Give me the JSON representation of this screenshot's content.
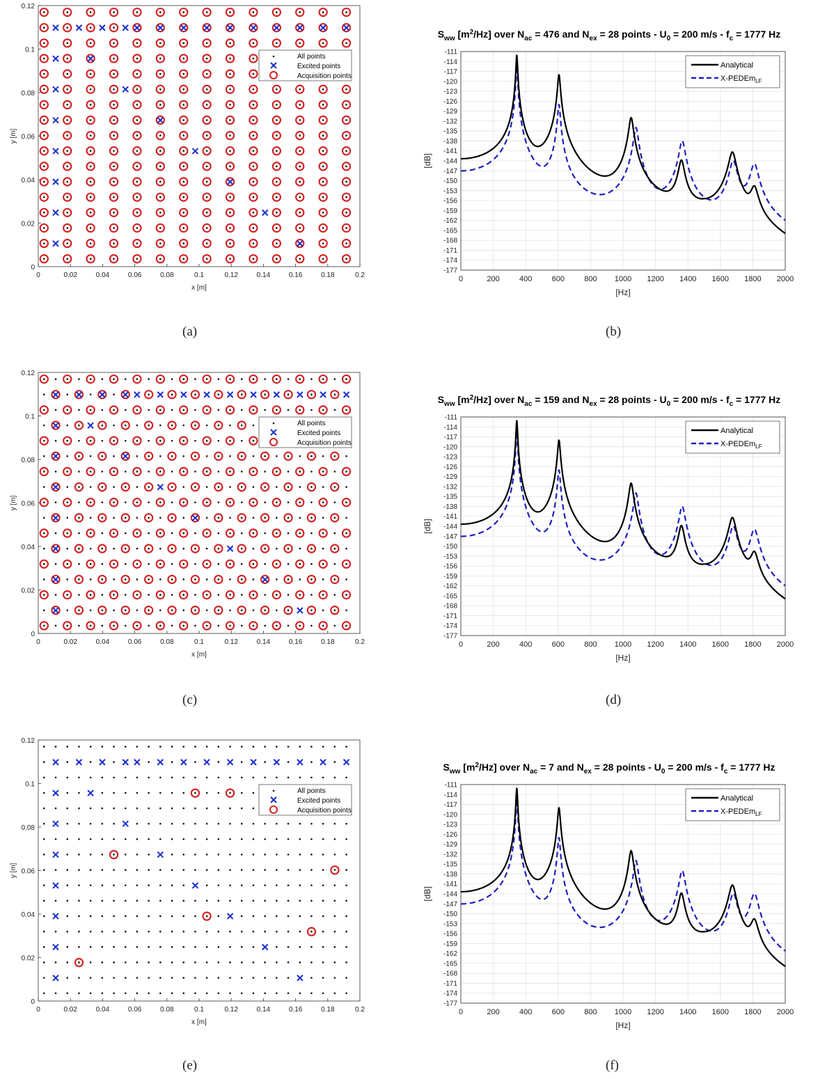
{
  "captions": [
    "(a)",
    "(b)",
    "(c)",
    "(d)",
    "(e)",
    "(f)"
  ],
  "chart_data": [
    {
      "id": "a",
      "type": "scatter",
      "xlabel": "x [m]",
      "ylabel": "y [m]",
      "xlim": [
        0,
        0.2
      ],
      "ylim": [
        0,
        0.12
      ],
      "xticks": [
        "0",
        "0.02",
        "0.04",
        "0.06",
        "0.08",
        "0.1",
        "0.12",
        "0.14",
        "0.16",
        "0.18",
        "0.2"
      ],
      "yticks": [
        "0",
        "0.02",
        "0.04",
        "0.06",
        "0.08",
        "0.1",
        "0.12"
      ],
      "grid": {
        "x0": 0.0036,
        "dx": 0.01446,
        "nx": 14,
        "y0": 0.0036,
        "dy": 0.007083,
        "ny": 17
      },
      "acquisition": "all",
      "excited_points": [
        [
          0.0108,
          0.1098
        ],
        [
          0.0253,
          0.1098
        ],
        [
          0.0398,
          0.1098
        ],
        [
          0.0542,
          0.1098
        ],
        [
          0.0614,
          0.1098
        ],
        [
          0.0759,
          0.1098
        ],
        [
          0.0904,
          0.1098
        ],
        [
          0.1048,
          0.1098
        ],
        [
          0.1193,
          0.1098
        ],
        [
          0.1338,
          0.1098
        ],
        [
          0.1482,
          0.1098
        ],
        [
          0.1627,
          0.1098
        ],
        [
          0.1771,
          0.1098
        ],
        [
          0.1916,
          0.1098
        ],
        [
          0.0108,
          0.0956
        ],
        [
          0.0325,
          0.0956
        ],
        [
          0.0108,
          0.0815
        ],
        [
          0.0542,
          0.0815
        ],
        [
          0.0108,
          0.0673
        ],
        [
          0.0759,
          0.0673
        ],
        [
          0.0108,
          0.0531
        ],
        [
          0.0976,
          0.0531
        ],
        [
          0.0108,
          0.039
        ],
        [
          0.1193,
          0.039
        ],
        [
          0.0108,
          0.0248
        ],
        [
          0.141,
          0.0248
        ],
        [
          0.0108,
          0.0106
        ],
        [
          0.1627,
          0.0106
        ]
      ],
      "legend": [
        "All points",
        "Excited points",
        "Acquisition points"
      ],
      "legend_position": "top-right"
    },
    {
      "id": "b",
      "type": "line",
      "title_parts": [
        "S",
        "ww",
        " [m",
        "2",
        "/Hz] over N",
        "ac",
        " = 476 and N",
        "ex",
        " = 28 points - U",
        "0",
        " = 200 m/s - f",
        "c",
        " = 1777 Hz"
      ],
      "xlabel": "[Hz]",
      "ylabel": "[dB]",
      "xlim": [
        0,
        2000
      ],
      "ylim": [
        -177,
        -111
      ],
      "legend_position": "top-right",
      "series": [
        {
          "name": "Analytical",
          "style": "solid",
          "color": "#000000"
        },
        {
          "name": "X-PEDEm",
          "name_sub": "LF",
          "style": "dashed",
          "color": "#1f1fbf"
        }
      ],
      "peaks_analytical": [
        [
          345,
          -112
        ],
        [
          605,
          -118
        ],
        [
          1050,
          -131
        ],
        [
          1360,
          -144
        ],
        [
          1675,
          -140
        ],
        [
          1810,
          -150
        ]
      ],
      "peaks_xpedem": [
        [
          345,
          -115
        ],
        [
          605,
          -127
        ],
        [
          1080,
          -134
        ],
        [
          1365,
          -138
        ],
        [
          1680,
          -144
        ],
        [
          1810,
          -145
        ]
      ]
    },
    {
      "id": "c",
      "type": "scatter",
      "xlabel": "x [m]",
      "ylabel": "y [m]",
      "xlim": [
        0,
        0.2
      ],
      "ylim": [
        0,
        0.12
      ],
      "xticks": [
        "0",
        "0.02",
        "0.04",
        "0.06",
        "0.08",
        "0.1",
        "0.12",
        "0.14",
        "0.16",
        "0.18",
        "0.2"
      ],
      "yticks": [
        "0",
        "0.02",
        "0.04",
        "0.06",
        "0.08",
        "0.1",
        "0.12"
      ],
      "grid": {
        "x0": 0.0036,
        "dx": 0.00723,
        "nx": 27,
        "y0": 0.0036,
        "dy": 0.007083,
        "ny": 17
      },
      "acquisition": "checker",
      "excited_points": [
        [
          0.0108,
          0.1098
        ],
        [
          0.0253,
          0.1098
        ],
        [
          0.0398,
          0.1098
        ],
        [
          0.0542,
          0.1098
        ],
        [
          0.0614,
          0.1098
        ],
        [
          0.0759,
          0.1098
        ],
        [
          0.0904,
          0.1098
        ],
        [
          0.1048,
          0.1098
        ],
        [
          0.1193,
          0.1098
        ],
        [
          0.1338,
          0.1098
        ],
        [
          0.1482,
          0.1098
        ],
        [
          0.1627,
          0.1098
        ],
        [
          0.1771,
          0.1098
        ],
        [
          0.1916,
          0.1098
        ],
        [
          0.0108,
          0.0956
        ],
        [
          0.0325,
          0.0956
        ],
        [
          0.0108,
          0.0815
        ],
        [
          0.0542,
          0.0815
        ],
        [
          0.0108,
          0.0673
        ],
        [
          0.0759,
          0.0673
        ],
        [
          0.0108,
          0.0531
        ],
        [
          0.0976,
          0.0531
        ],
        [
          0.0108,
          0.039
        ],
        [
          0.1193,
          0.039
        ],
        [
          0.0108,
          0.0248
        ],
        [
          0.141,
          0.0248
        ],
        [
          0.0108,
          0.0106
        ],
        [
          0.1627,
          0.0106
        ]
      ],
      "legend": [
        "All points",
        "Excited points",
        "Acquisition points"
      ],
      "legend_position": "top-right"
    },
    {
      "id": "d",
      "type": "line",
      "title_parts": [
        "S",
        "ww",
        " [m",
        "2",
        "/Hz] over N",
        "ac",
        " = 159 and N",
        "ex",
        " = 28 points - U",
        "0",
        " = 200 m/s - f",
        "c",
        " = 1777 Hz"
      ],
      "xlabel": "[Hz]",
      "ylabel": "[dB]",
      "xlim": [
        0,
        2000
      ],
      "ylim": [
        -177,
        -111
      ],
      "legend_position": "top-right",
      "series": [
        {
          "name": "Analytical",
          "style": "solid",
          "color": "#000000"
        },
        {
          "name": "X-PEDEm",
          "name_sub": "LF",
          "style": "dashed",
          "color": "#1f1fbf"
        }
      ],
      "peaks_analytical": [
        [
          345,
          -112
        ],
        [
          605,
          -118
        ],
        [
          1050,
          -131
        ],
        [
          1360,
          -144
        ],
        [
          1675,
          -140
        ],
        [
          1810,
          -150
        ]
      ],
      "peaks_xpedem": [
        [
          345,
          -115
        ],
        [
          605,
          -127
        ],
        [
          1080,
          -134
        ],
        [
          1365,
          -138
        ],
        [
          1680,
          -144
        ],
        [
          1810,
          -145
        ]
      ]
    },
    {
      "id": "e",
      "type": "scatter",
      "xlabel": "x [m]",
      "ylabel": "y [m]",
      "xlim": [
        0,
        0.2
      ],
      "ylim": [
        0,
        0.12
      ],
      "xticks": [
        "0",
        "0.02",
        "0.04",
        "0.06",
        "0.08",
        "0.1",
        "0.12",
        "0.14",
        "0.16",
        "0.18",
        "0.2"
      ],
      "yticks": [
        "0",
        "0.02",
        "0.04",
        "0.06",
        "0.08",
        "0.1",
        "0.12"
      ],
      "grid": {
        "x0": 0.0036,
        "dx": 0.00723,
        "nx": 27,
        "y0": 0.0036,
        "dy": 0.007083,
        "ny": 17
      },
      "acquisition": "list",
      "acquisition_points": [
        [
          0.0976,
          0.0956
        ],
        [
          0.1193,
          0.0956
        ],
        [
          0.047,
          0.0673
        ],
        [
          0.1844,
          0.0602
        ],
        [
          0.1048,
          0.039
        ],
        [
          0.1699,
          0.0319
        ],
        [
          0.0253,
          0.0177
        ]
      ],
      "excited_points": [
        [
          0.0108,
          0.1098
        ],
        [
          0.0253,
          0.1098
        ],
        [
          0.0398,
          0.1098
        ],
        [
          0.0542,
          0.1098
        ],
        [
          0.0614,
          0.1098
        ],
        [
          0.0759,
          0.1098
        ],
        [
          0.0904,
          0.1098
        ],
        [
          0.1048,
          0.1098
        ],
        [
          0.1193,
          0.1098
        ],
        [
          0.1338,
          0.1098
        ],
        [
          0.1482,
          0.1098
        ],
        [
          0.1627,
          0.1098
        ],
        [
          0.1771,
          0.1098
        ],
        [
          0.1916,
          0.1098
        ],
        [
          0.0108,
          0.0956
        ],
        [
          0.0325,
          0.0956
        ],
        [
          0.0108,
          0.0815
        ],
        [
          0.0542,
          0.0815
        ],
        [
          0.0108,
          0.0673
        ],
        [
          0.0759,
          0.0673
        ],
        [
          0.0108,
          0.0531
        ],
        [
          0.0976,
          0.0531
        ],
        [
          0.0108,
          0.039
        ],
        [
          0.1193,
          0.039
        ],
        [
          0.0108,
          0.0248
        ],
        [
          0.141,
          0.0248
        ],
        [
          0.0108,
          0.0106
        ],
        [
          0.1627,
          0.0106
        ]
      ],
      "legend": [
        "All points",
        "Excited points",
        "Acquisition points"
      ],
      "legend_position": "top-right"
    },
    {
      "id": "f",
      "type": "line",
      "title_parts": [
        "S",
        "ww",
        " [m",
        "2",
        "/Hz] over N",
        "ac",
        " = 7 and N",
        "ex",
        " = 28 points - U",
        "0",
        " = 200 m/s - f",
        "c",
        " = 1777 Hz"
      ],
      "xlabel": "[Hz]",
      "ylabel": "[dB]",
      "xlim": [
        0,
        2000
      ],
      "ylim": [
        -177,
        -111
      ],
      "legend_position": "top-right",
      "series": [
        {
          "name": "Analytical",
          "style": "solid",
          "color": "#000000"
        },
        {
          "name": "X-PEDEm",
          "name_sub": "LF",
          "style": "dashed",
          "color": "#1f1fbf"
        }
      ],
      "peaks_analytical": [
        [
          345,
          -112
        ],
        [
          605,
          -118
        ],
        [
          1050,
          -131
        ],
        [
          1360,
          -144
        ],
        [
          1675,
          -140
        ],
        [
          1810,
          -150
        ]
      ],
      "peaks_xpedem": [
        [
          345,
          -115
        ],
        [
          605,
          -127
        ],
        [
          1080,
          -134
        ],
        [
          1365,
          -137
        ],
        [
          1680,
          -144
        ],
        [
          1810,
          -144
        ]
      ]
    }
  ]
}
